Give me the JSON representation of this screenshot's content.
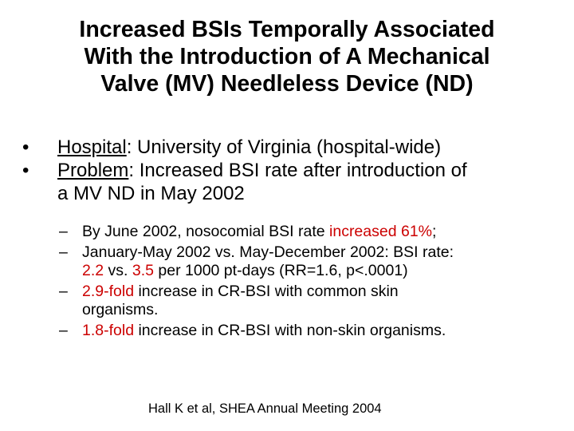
{
  "title": {
    "line1": "Increased BSIs Temporally Associated",
    "line2": "With the Introduction of A Mechanical",
    "line3": "Valve (MV) Needleless Device (ND)"
  },
  "bullets": [
    {
      "marker": "•",
      "label": "Hospital",
      "text": ": University of Virginia (hospital-wide)"
    },
    {
      "marker": "•",
      "label": "Problem",
      "text": ": Increased BSI rate after introduction of",
      "text2": "a MV ND in May 2002"
    }
  ],
  "sub_bullets": [
    {
      "marker": "–",
      "pre": "By June 2002, nosocomial BSI rate ",
      "highlight": "increased 61%",
      "post": ";"
    },
    {
      "marker": "–",
      "line1": "January-May 2002 vs. May-December 2002: BSI rate:",
      "val1": "2.2",
      "vs": " vs. ",
      "val2": "3.5",
      "rest": " per 1000 pt-days (RR=1.6, p<.0001)"
    },
    {
      "marker": "–",
      "highlight": "2.9-fold",
      "text": " increase in CR-BSI with common skin",
      "text2": "organisms."
    },
    {
      "marker": "–",
      "highlight": "1.8-fold",
      "text": " increase in CR-BSI with non-skin organisms."
    }
  ],
  "citation": "Hall K et al, SHEA Annual Meeting 2004",
  "colors": {
    "highlight": "#cc0000",
    "text": "#000000",
    "background": "#ffffff"
  }
}
